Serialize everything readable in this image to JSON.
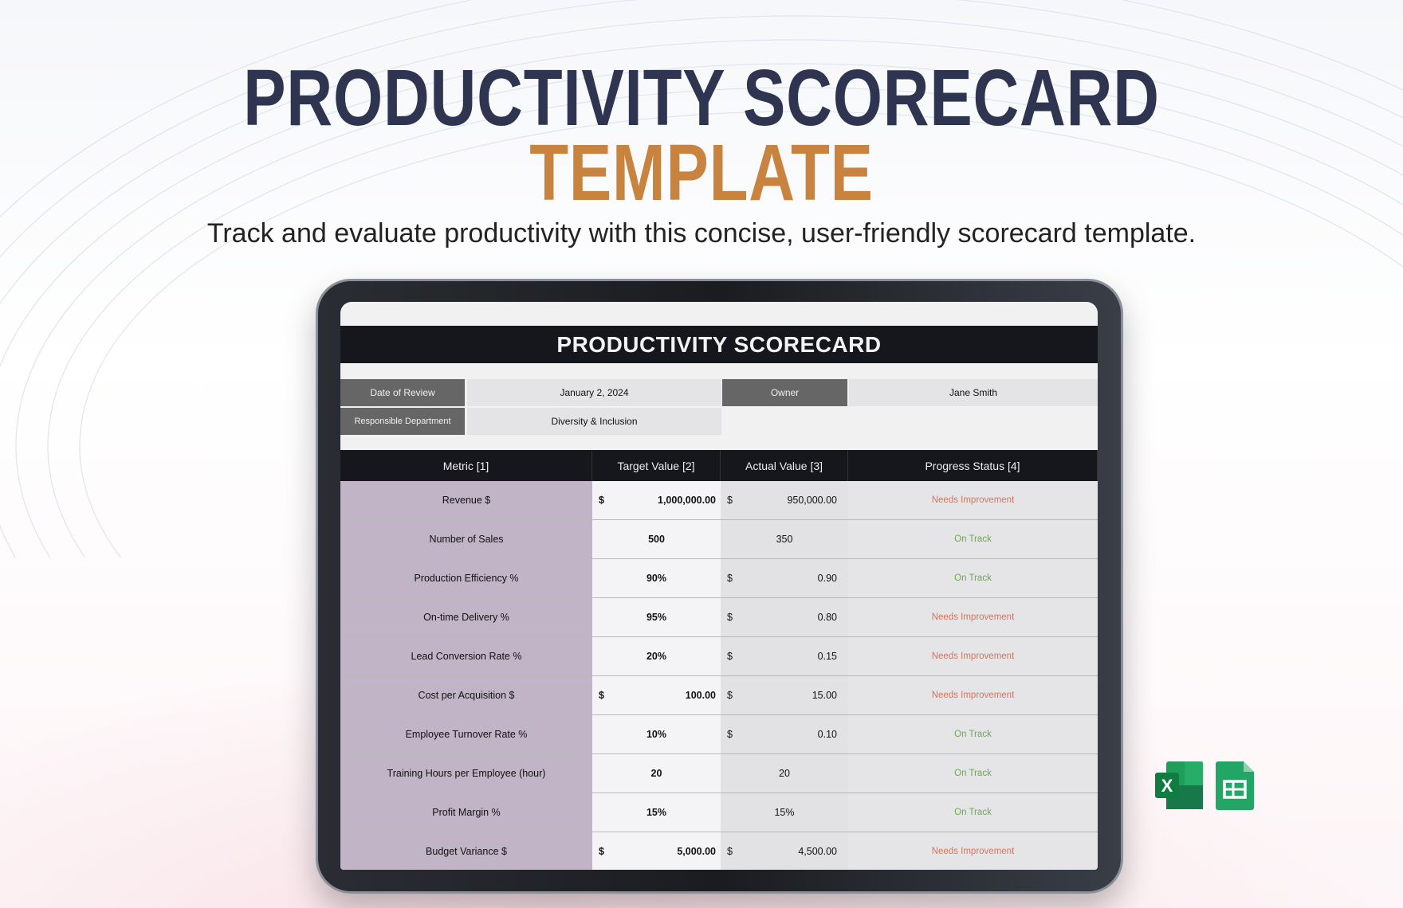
{
  "hero": {
    "title_line1": "PRODUCTIVITY SCORECARD",
    "title_line2": "TEMPLATE",
    "subtitle": "Track and evaluate productivity with this concise, user-friendly scorecard template."
  },
  "sheet": {
    "title": "PRODUCTIVITY SCORECARD",
    "info": {
      "date_label": "Date of Review",
      "date_value": "January 2, 2024",
      "owner_label": "Owner",
      "owner_value": "Jane Smith",
      "dept_label": "Responsible Department",
      "dept_value": "Diversity & Inclusion"
    },
    "columns": [
      "Metric [1]",
      "Target Value [2]",
      "Actual Value [3]",
      "Progress Status [4]"
    ],
    "rows": [
      {
        "metric": "Revenue $",
        "target_cur": "$",
        "target": "1,000,000.00",
        "actual_cur": "$",
        "actual": "950,000.00",
        "status": "Needs Improvement"
      },
      {
        "metric": "Number of Sales",
        "target_cur": "",
        "target": "500",
        "actual_cur": "",
        "actual": "350",
        "status": "On Track"
      },
      {
        "metric": "Production Efficiency %",
        "target_cur": "",
        "target": "90%",
        "actual_cur": "$",
        "actual": "0.90",
        "status": "On Track"
      },
      {
        "metric": "On-time Delivery %",
        "target_cur": "",
        "target": "95%",
        "actual_cur": "$",
        "actual": "0.80",
        "status": "Needs Improvement"
      },
      {
        "metric": "Lead Conversion Rate %",
        "target_cur": "",
        "target": "20%",
        "actual_cur": "$",
        "actual": "0.15",
        "status": "Needs Improvement"
      },
      {
        "metric": "Cost per Acquisition $",
        "target_cur": "$",
        "target": "100.00",
        "actual_cur": "$",
        "actual": "15.00",
        "status": "Needs Improvement"
      },
      {
        "metric": "Employee Turnover Rate %",
        "target_cur": "",
        "target": "10%",
        "actual_cur": "$",
        "actual": "0.10",
        "status": "On Track"
      },
      {
        "metric": "Training Hours per Employee (hour)",
        "target_cur": "",
        "target": "20",
        "actual_cur": "",
        "actual": "20",
        "status": "On Track"
      },
      {
        "metric": "Profit Margin %",
        "target_cur": "",
        "target": "15%",
        "actual_cur": "",
        "actual": "15%",
        "status": "On Track"
      },
      {
        "metric": "Budget Variance $",
        "target_cur": "$",
        "target": "5,000.00",
        "actual_cur": "$",
        "actual": "4,500.00",
        "status": "Needs Improvement"
      }
    ]
  },
  "colors": {
    "title": "#2f3550",
    "accent": "#c8843e",
    "needs_improvement": "#d9735a",
    "on_track": "#6aaa4e",
    "metric_bg": "#c0b4c6"
  },
  "icons": [
    "excel-icon",
    "google-sheets-icon"
  ]
}
